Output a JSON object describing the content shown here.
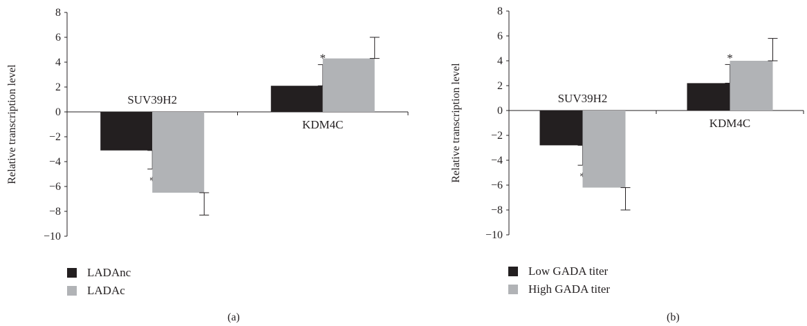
{
  "chart_data": [
    {
      "type": "bar",
      "panel_label": "(a)",
      "ylabel": "Relative transcription level",
      "ylim": [
        -10,
        8
      ],
      "yticks": [
        8,
        6,
        4,
        2,
        0,
        -2,
        -4,
        -6,
        -8,
        -10
      ],
      "ytick_labels": [
        "8",
        "6",
        "4",
        "2",
        "0",
        "−2",
        "−4",
        "−6",
        "−8",
        "−10"
      ],
      "categories": [
        "SUV39H2",
        "KDM4C"
      ],
      "series": [
        {
          "name": "LADAnc",
          "color": "#231f20",
          "values": [
            -3.1,
            2.1
          ],
          "errors": [
            1.5,
            1.7
          ]
        },
        {
          "name": "LADAc",
          "color": "#b1b3b6",
          "values": [
            -6.5,
            4.3
          ],
          "errors": [
            1.8,
            1.7
          ]
        }
      ],
      "significance": [
        {
          "category": "SUV39H2",
          "series": "LADAnc",
          "mark": "*"
        },
        {
          "category": "KDM4C",
          "series": "LADAnc",
          "mark": "*"
        }
      ],
      "legend_position": "bottom-left",
      "grid": false
    },
    {
      "type": "bar",
      "panel_label": "(b)",
      "ylabel": "Relative transcription level",
      "ylim": [
        -10,
        8
      ],
      "yticks": [
        8,
        6,
        4,
        2,
        0,
        -2,
        -4,
        -6,
        -8,
        -10
      ],
      "ytick_labels": [
        "8",
        "6",
        "4",
        "2",
        "0",
        "−2",
        "−4",
        "−6",
        "−8",
        "−10"
      ],
      "categories": [
        "SUV39H2",
        "KDM4C"
      ],
      "series": [
        {
          "name": "Low GADA titer",
          "color": "#231f20",
          "values": [
            -2.8,
            2.2
          ],
          "errors": [
            1.6,
            1.5
          ]
        },
        {
          "name": "High GADA titer",
          "color": "#b1b3b6",
          "values": [
            -6.2,
            4.0
          ],
          "errors": [
            1.8,
            1.8
          ]
        }
      ],
      "significance": [
        {
          "category": "SUV39H2",
          "series": "Low GADA titer",
          "mark": "*"
        },
        {
          "category": "KDM4C",
          "series": "Low GADA titer",
          "mark": "*"
        }
      ],
      "legend_position": "bottom-left",
      "grid": false
    }
  ]
}
